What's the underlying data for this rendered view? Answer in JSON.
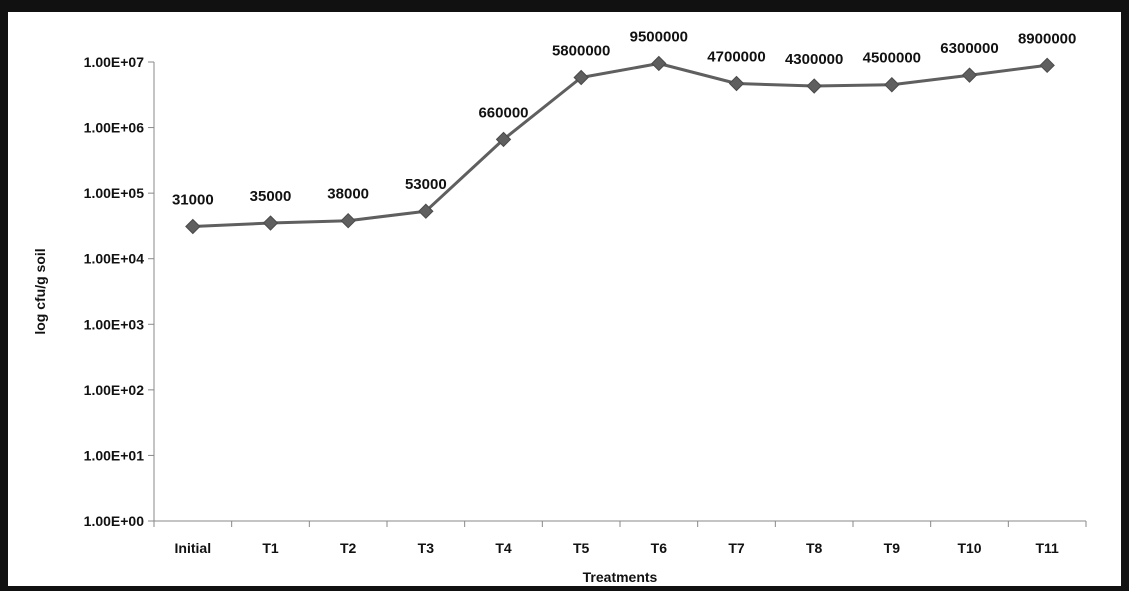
{
  "chart_data": {
    "type": "line",
    "xlabel": "Treatments",
    "ylabel": "log cfu/g soil",
    "y_scale": "log",
    "ylim": [
      1,
      10000000
    ],
    "grid": false,
    "y_ticks": [
      {
        "value": 1,
        "label": "1.00E+00"
      },
      {
        "value": 10,
        "label": "1.00E+01"
      },
      {
        "value": 100,
        "label": "1.00E+02"
      },
      {
        "value": 1000,
        "label": "1.00E+03"
      },
      {
        "value": 10000,
        "label": "1.00E+04"
      },
      {
        "value": 100000,
        "label": "1.00E+05"
      },
      {
        "value": 1000000,
        "label": "1.00E+06"
      },
      {
        "value": 10000000,
        "label": "1.00E+07"
      }
    ],
    "categories": [
      "Initial",
      "T1",
      "T2",
      "T3",
      "T4",
      "T5",
      "T6",
      "T7",
      "T8",
      "T9",
      "T10",
      "T11"
    ],
    "values": [
      31000,
      35000,
      38000,
      53000,
      660000,
      5800000,
      9500000,
      4700000,
      4300000,
      4500000,
      6300000,
      8900000
    ],
    "data_labels": [
      "31000",
      "35000",
      "38000",
      "53000",
      "660000",
      "5800000",
      "9500000",
      "4700000",
      "4300000",
      "4500000",
      "6300000",
      "8900000"
    ],
    "marker": "diamond",
    "line_color": "#5f5f5f"
  }
}
